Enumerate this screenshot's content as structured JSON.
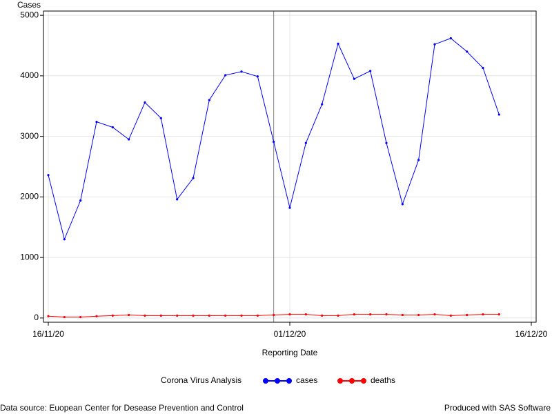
{
  "chart_data": {
    "type": "line",
    "y_label": "Cases",
    "x_label": "Reporting Date",
    "legend_title": "Corona Virus Analysis",
    "footnote_left": "Data source: Euopean Center for Desease Prevention and Control",
    "footnote_right": "Produced with SAS Software",
    "x": [
      "16/11/20",
      "17/11/20",
      "18/11/20",
      "19/11/20",
      "20/11/20",
      "21/11/20",
      "22/11/20",
      "23/11/20",
      "24/11/20",
      "25/11/20",
      "26/11/20",
      "27/11/20",
      "28/11/20",
      "29/11/20",
      "30/11/20",
      "01/12/20",
      "02/12/20",
      "03/12/20",
      "04/12/20",
      "05/12/20",
      "06/12/20",
      "07/12/20",
      "08/12/20",
      "09/12/20",
      "10/12/20",
      "11/12/20",
      "12/12/20",
      "13/12/20",
      "14/12/20"
    ],
    "series": [
      {
        "name": "cases",
        "color": "#0000ff",
        "values": [
          2360,
          1300,
          1940,
          3240,
          3150,
          2950,
          3560,
          3300,
          1960,
          2310,
          3600,
          4010,
          4070,
          3990,
          2910,
          1820,
          2890,
          3530,
          4530,
          3950,
          4080,
          2890,
          1880,
          2610,
          4520,
          4620,
          4400,
          4130,
          3360
        ]
      },
      {
        "name": "deaths",
        "color": "#ff0000",
        "values": [
          30,
          15,
          15,
          30,
          40,
          50,
          40,
          40,
          40,
          40,
          40,
          40,
          40,
          40,
          50,
          60,
          60,
          40,
          40,
          60,
          60,
          60,
          50,
          50,
          60,
          40,
          50,
          60,
          60
        ]
      }
    ],
    "xlim": [
      "16/11/20",
      "16/12/20"
    ],
    "xticks": [
      "16/11/20",
      "01/12/20",
      "16/12/20"
    ],
    "ylim": [
      -70,
      5070
    ],
    "yticks": [
      0,
      1000,
      2000,
      3000,
      4000,
      5000
    ],
    "refline": "30/11/20",
    "grid": true
  }
}
